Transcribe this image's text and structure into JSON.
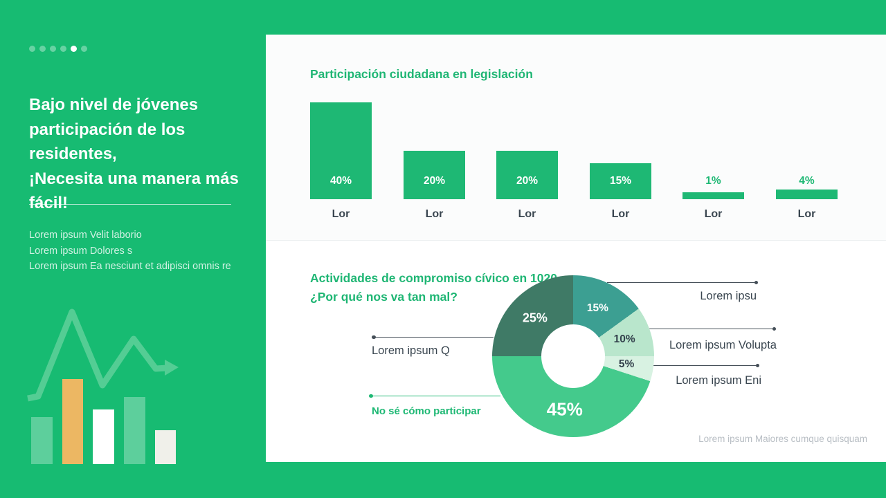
{
  "slide": {
    "pagination": {
      "count": 6,
      "active": 4
    },
    "title_lines": [
      "Bajo nivel de jóvenes",
      "participación de los residentes,",
      "¡Necesita una manera más fácil!"
    ],
    "bullets": [
      "Lorem ipsum Velit laborio",
      "Lorem ipsum Dolores s",
      "Lorem ipsum Ea nesciunt et adipisci omnis re"
    ]
  },
  "colors": {
    "background_green": "#17bb72",
    "accent_green": "#1eb874",
    "title_green": "#1fb674",
    "dark_text": "#3a4650",
    "muted_text": "#b8bec4",
    "deco_orange": "#ecb763",
    "deco_light": "rgba(255,255,255,0.3)"
  },
  "chart_data": [
    {
      "type": "bar",
      "title": "Participación ciudadana en legislación",
      "categories": [
        "Lor",
        "Lor",
        "Lor",
        "Lor",
        "Lor",
        "Lor"
      ],
      "values": [
        40,
        20,
        20,
        15,
        1,
        4
      ],
      "value_labels": [
        "40%",
        "20%",
        "20%",
        "15%",
        "1%",
        "4%"
      ],
      "unit": "%",
      "bar_color": "#1eb874",
      "ylim": [
        0,
        45
      ],
      "grid": "off",
      "value_label_inside_threshold": 15
    },
    {
      "type": "pie",
      "subtype": "donut",
      "title_lines": [
        "Actividades de compromiso cívico en 1020",
        "¿Por qué nos va tan mal?"
      ],
      "start_angle_deg": 0,
      "direction": "clockwise",
      "slices": [
        {
          "label": "Lorem ipsu",
          "value": 15,
          "pct": "15%",
          "color": "#3c9f92",
          "pct_color": "#ffffff"
        },
        {
          "label": "Lorem ipsum Volupta",
          "value": 10,
          "pct": "10%",
          "color": "#b9e6cc",
          "pct_color": "#33414c"
        },
        {
          "label": "Lorem ipsum Eni",
          "value": 5,
          "pct": "5%",
          "color": "#d8f2e2",
          "pct_color": "#33414c"
        },
        {
          "label": "No sé cómo participar",
          "value": 45,
          "pct": "45%",
          "color": "#44ca8c",
          "pct_color": "#ffffff"
        },
        {
          "label": "Lorem ipsum Q",
          "value": 25,
          "pct": "25%",
          "color": "#3f7a66",
          "pct_color": "#ffffff"
        }
      ],
      "footnote": "Lorem ipsum Maiores cumque quisquam"
    }
  ]
}
